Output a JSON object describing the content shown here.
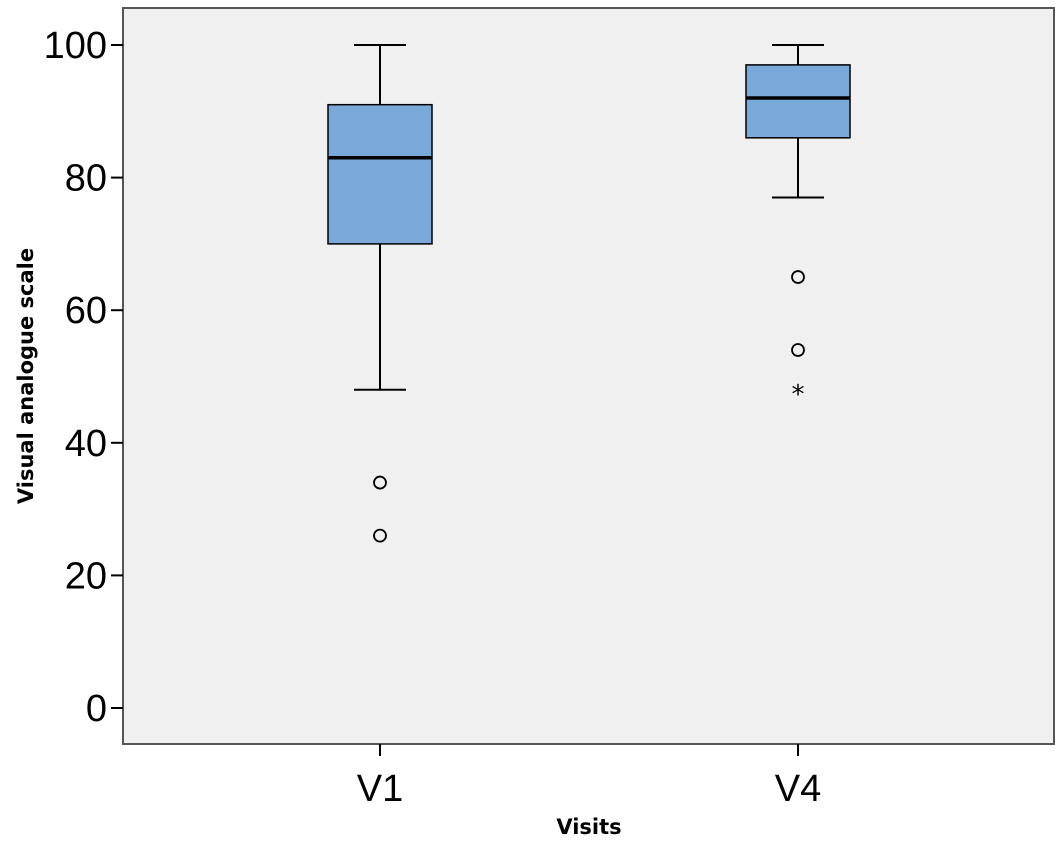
{
  "chart_data": {
    "type": "boxplot",
    "xlabel": "Visits",
    "ylabel": "Visual analogue scale",
    "ylim": [
      -5,
      106
    ],
    "yticks": [
      0,
      20,
      40,
      60,
      80,
      100
    ],
    "categories": [
      "V1",
      "V4"
    ],
    "boxes": [
      {
        "category": "V1",
        "whisker_low": 48,
        "q1": 70,
        "median": 83,
        "q3": 91,
        "whisker_high": 100,
        "outliers": [
          34,
          26
        ],
        "extremes": []
      },
      {
        "category": "V4",
        "whisker_low": 77,
        "q1": 86,
        "median": 92,
        "q3": 97,
        "whisker_high": 100,
        "outliers": [
          65,
          54
        ],
        "extremes": [
          48
        ]
      }
    ],
    "grid": false,
    "legend": "none",
    "colors": {
      "box_fill": "#79a8d9",
      "plot_background": "#f0f0f0",
      "stroke": "#000000"
    }
  }
}
